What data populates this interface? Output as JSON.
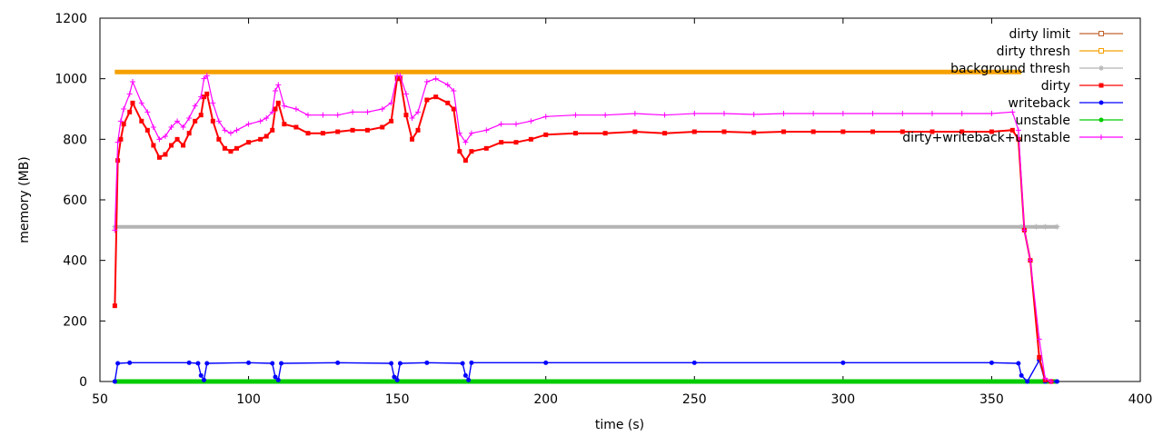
{
  "chart_data": {
    "type": "line",
    "xlabel": "time (s)",
    "ylabel": "memory (MB)",
    "xlim": [
      50,
      400
    ],
    "ylim": [
      0,
      1200
    ],
    "x_ticks": [
      50,
      100,
      150,
      200,
      250,
      300,
      350,
      400
    ],
    "y_ticks": [
      0,
      200,
      400,
      600,
      800,
      1000,
      1200
    ],
    "grid": false,
    "legend_position": "top-right",
    "series": [
      {
        "name": "dirty limit",
        "color": "#c0642c",
        "marker": "square-open",
        "x": [
          55,
          360
        ],
        "y": [
          1022,
          1022
        ]
      },
      {
        "name": "dirty thresh",
        "color": "#f5a000",
        "marker": "square-open",
        "x": [
          55,
          360
        ],
        "y": [
          1022,
          1022
        ]
      },
      {
        "name": "background thresh",
        "color": "#b4b4b4",
        "marker": "star",
        "x": [
          55,
          360,
          365,
          368,
          372
        ],
        "y": [
          511,
          511,
          511,
          511,
          511
        ]
      },
      {
        "name": "dirty",
        "color": "#ff0000",
        "marker": "square",
        "x": [
          55,
          56,
          57,
          58,
          60,
          61,
          64,
          66,
          68,
          70,
          72,
          74,
          76,
          78,
          80,
          82,
          84,
          85,
          86,
          88,
          90,
          92,
          94,
          96,
          100,
          104,
          106,
          108,
          109,
          110,
          112,
          116,
          120,
          125,
          130,
          135,
          140,
          145,
          148,
          150,
          151,
          153,
          155,
          157,
          160,
          163,
          167,
          169,
          171,
          173,
          175,
          180,
          185,
          190,
          195,
          200,
          210,
          220,
          230,
          240,
          250,
          260,
          270,
          280,
          290,
          300,
          310,
          320,
          330,
          340,
          350,
          357,
          359,
          361,
          363,
          366,
          368,
          370
        ],
        "y": [
          250,
          730,
          800,
          850,
          890,
          920,
          860,
          830,
          780,
          740,
          750,
          780,
          800,
          780,
          820,
          860,
          880,
          940,
          950,
          860,
          800,
          770,
          760,
          770,
          790,
          800,
          810,
          830,
          900,
          920,
          850,
          840,
          820,
          820,
          825,
          830,
          830,
          840,
          860,
          1000,
          1000,
          880,
          800,
          830,
          930,
          940,
          920,
          900,
          760,
          730,
          760,
          770,
          790,
          790,
          800,
          815,
          820,
          820,
          825,
          820,
          825,
          825,
          822,
          825,
          825,
          825,
          825,
          825,
          825,
          825,
          825,
          830,
          800,
          500,
          400,
          80,
          5,
          0
        ]
      },
      {
        "name": "writeback",
        "color": "#0000ff",
        "marker": "dot",
        "x": [
          55,
          56,
          60,
          80,
          83,
          84,
          85,
          86,
          100,
          108,
          109,
          110,
          111,
          130,
          148,
          149,
          150,
          151,
          160,
          172,
          173,
          174,
          175,
          200,
          250,
          300,
          350,
          359,
          360,
          362,
          366,
          368,
          372
        ],
        "y": [
          0,
          60,
          62,
          62,
          60,
          20,
          5,
          60,
          62,
          60,
          15,
          5,
          60,
          62,
          60,
          15,
          5,
          60,
          62,
          60,
          20,
          5,
          62,
          62,
          62,
          62,
          62,
          60,
          20,
          0,
          70,
          0,
          0
        ]
      },
      {
        "name": "unstable",
        "color": "#00cc00",
        "marker": "dot",
        "x": [
          55,
          360,
          372
        ],
        "y": [
          0,
          0,
          0
        ]
      },
      {
        "name": "dirty+writeback+unstable",
        "color": "#ff00ff",
        "marker": "plus",
        "x": [
          55,
          56,
          57,
          58,
          60,
          61,
          64,
          66,
          68,
          70,
          72,
          74,
          76,
          78,
          80,
          82,
          84,
          85,
          86,
          88,
          90,
          92,
          94,
          96,
          100,
          104,
          106,
          108,
          109,
          110,
          112,
          116,
          120,
          125,
          130,
          135,
          140,
          145,
          148,
          150,
          151,
          153,
          155,
          157,
          160,
          163,
          167,
          169,
          171,
          173,
          175,
          180,
          185,
          190,
          195,
          200,
          210,
          220,
          230,
          240,
          250,
          260,
          270,
          280,
          290,
          300,
          310,
          320,
          330,
          340,
          350,
          357,
          359,
          361,
          363,
          366,
          368,
          370
        ],
        "y": [
          500,
          790,
          860,
          900,
          950,
          990,
          920,
          890,
          840,
          800,
          810,
          840,
          860,
          840,
          870,
          910,
          940,
          1000,
          1010,
          920,
          860,
          830,
          820,
          830,
          850,
          860,
          870,
          890,
          960,
          980,
          910,
          900,
          880,
          880,
          880,
          890,
          890,
          900,
          920,
          1010,
          1010,
          950,
          870,
          890,
          990,
          1000,
          980,
          960,
          820,
          790,
          820,
          830,
          850,
          850,
          860,
          875,
          880,
          880,
          885,
          880,
          885,
          885,
          882,
          885,
          885,
          885,
          885,
          885,
          885,
          885,
          885,
          890,
          830,
          500,
          400,
          140,
          10,
          0
        ]
      }
    ]
  }
}
